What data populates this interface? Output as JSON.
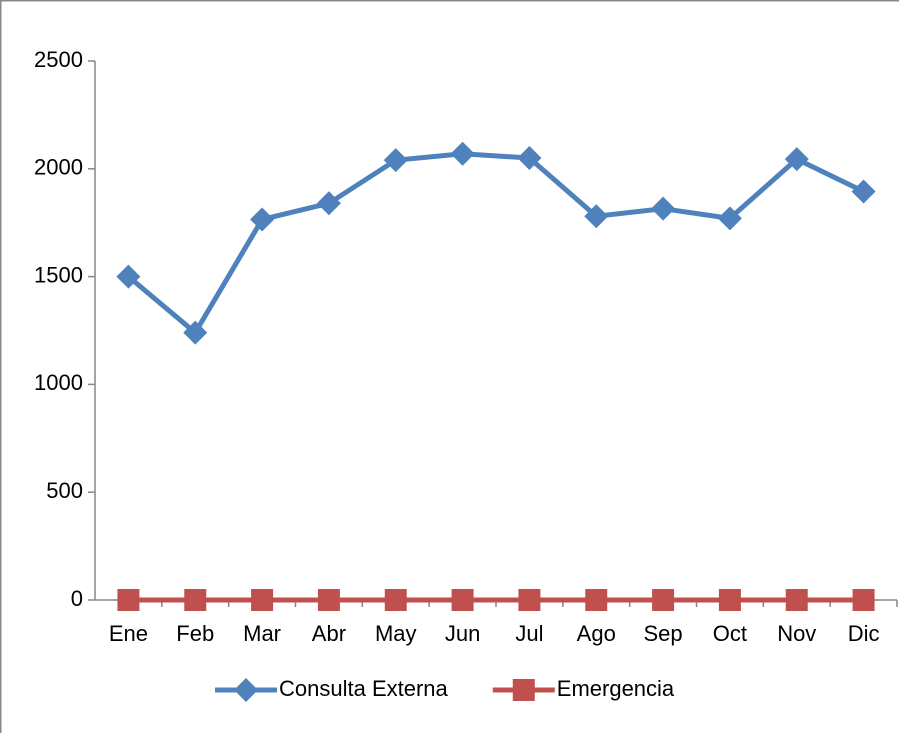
{
  "chart_data": {
    "type": "line",
    "categories": [
      "Ene",
      "Feb",
      "Mar",
      "Abr",
      "May",
      "Jun",
      "Jul",
      "Ago",
      "Sep",
      "Oct",
      "Nov",
      "Dic"
    ],
    "series": [
      {
        "name": "Consulta Externa",
        "color": "#4f81bd",
        "marker": "diamond",
        "values": [
          1500,
          1240,
          1765,
          1840,
          2040,
          2070,
          2050,
          1780,
          1815,
          1770,
          2045,
          1895
        ]
      },
      {
        "name": "Emergencia",
        "color": "#c0504d",
        "marker": "square",
        "values": [
          0,
          0,
          0,
          0,
          0,
          0,
          0,
          0,
          0,
          0,
          0,
          0
        ]
      }
    ],
    "ylim": [
      0,
      2500
    ],
    "yticks": [
      0,
      500,
      1000,
      1500,
      2000,
      2500
    ],
    "grid": false,
    "legend": "bottom"
  }
}
